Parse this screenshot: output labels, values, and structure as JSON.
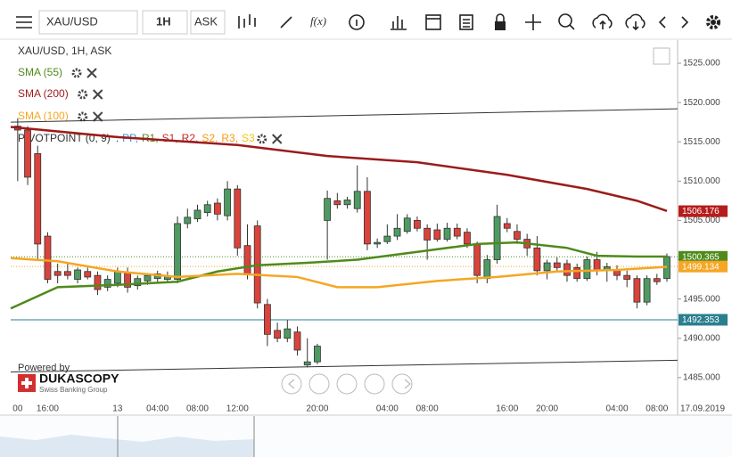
{
  "toolbar": {
    "symbol": "XAU/USD",
    "period": "1H",
    "side": "ASK",
    "function_button": "f(x)"
  },
  "branding": {
    "powered_by": "Powered by",
    "name": "DUKASCOPY",
    "tagline": "Swiss Banking Group"
  },
  "chart_data": {
    "type": "candlestick",
    "title": "XAU/USD, 1H, ASK",
    "categories": [
      "00",
      null,
      null,
      "16:00",
      null,
      null,
      null,
      null,
      null,
      null,
      "13",
      null,
      null,
      null,
      "04:00",
      null,
      null,
      null,
      "08:00",
      null,
      null,
      null,
      "12:00",
      null,
      null,
      null,
      null,
      null,
      null,
      null,
      "20:00",
      null,
      null,
      null,
      null,
      null,
      null,
      "04:00",
      null,
      null,
      null,
      "08:00",
      null,
      null,
      null,
      null,
      null,
      null,
      null,
      "16:00",
      null,
      null,
      null,
      "20:00",
      null,
      null,
      null,
      null,
      null,
      null,
      "04:00",
      null,
      null,
      null,
      "08:00",
      null
    ],
    "date_label": "17.09.2019",
    "open": [
      1517,
      1516.5,
      1513.5,
      1503,
      1498.5,
      1498.5,
      1497.5,
      1498.5,
      1498,
      1496.5,
      1497,
      1498.3,
      1496.7,
      1497.3,
      1497.6,
      1497.5,
      1497.5,
      1504.6,
      1505.2,
      1506,
      1507.2,
      1505.6,
      1509,
      1501.8,
      1504.3,
      1494.3,
      1491,
      1490,
      1490.8,
      1486.6,
      1487,
      1505,
      1507.5,
      1507,
      1506.5,
      1508.7,
      1502,
      1502.3,
      1503,
      1503.6,
      1505,
      1504,
      1503.8,
      1502.6,
      1504,
      1503.5,
      1502,
      1497.6,
      1500,
      1504.6,
      1503.6,
      1502.6,
      1501.5,
      1498.6,
      1499.6,
      1499.5,
      1499,
      1497.6,
      1500,
      1498.6,
      1498.7,
      1498,
      1497.6,
      1494.6,
      1497.6,
      1497.6
    ],
    "high": [
      1518,
      1517,
      1514.5,
      1503.5,
      1499.5,
      1499.5,
      1499,
      1499,
      1498.5,
      1498,
      1499,
      1499,
      1498,
      1498.3,
      1498.6,
      1498.5,
      1505.5,
      1506.5,
      1507,
      1507.5,
      1507.8,
      1510,
      1509.5,
      1504.5,
      1505,
      1495,
      1492,
      1492.3,
      1491.5,
      1490,
      1489.3,
      1508.8,
      1508.5,
      1508,
      1512,
      1510.5,
      1502.7,
      1504.5,
      1505.8,
      1505.8,
      1505.5,
      1504.5,
      1504.6,
      1504.7,
      1504.6,
      1504,
      1502.3,
      1500.6,
      1507,
      1505.3,
      1504.5,
      1503.3,
      1503,
      1500,
      1500.3,
      1500,
      1499.5,
      1500.4,
      1501,
      1499.6,
      1499.3,
      1498.6,
      1498,
      1498,
      1498.2,
      1500.8
    ],
    "low": [
      1510,
      1509.5,
      1500,
      1497,
      1497,
      1497.5,
      1497,
      1497.5,
      1495.5,
      1496,
      1496.5,
      1495.8,
      1496.2,
      1496.8,
      1497,
      1497,
      1497,
      1504,
      1504.8,
      1505.5,
      1505,
      1505,
      1500.5,
      1497.5,
      1493.8,
      1489,
      1489.5,
      1489.5,
      1487.8,
      1486.3,
      1486.7,
      1500,
      1506.5,
      1506.5,
      1506,
      1501.2,
      1501.5,
      1502,
      1502.5,
      1503.3,
      1503.6,
      1500,
      1502.3,
      1502.3,
      1502.6,
      1501.5,
      1497,
      1497,
      1499.5,
      1503.5,
      1502,
      1500.5,
      1498,
      1497.5,
      1498.5,
      1497.2,
      1497.2,
      1497.3,
      1498,
      1497.2,
      1497.4,
      1496.5,
      1493.8,
      1494.2,
      1496.8,
      1497.2
    ],
    "close": [
      1516.5,
      1510.5,
      1502,
      1497.5,
      1498,
      1498,
      1498.7,
      1497.8,
      1496.2,
      1497.5,
      1498.5,
      1496.5,
      1497.6,
      1498,
      1498.2,
      1497.9,
      1504.6,
      1505.4,
      1506.3,
      1507,
      1505.8,
      1509,
      1501.5,
      1498.2,
      1494.5,
      1490.5,
      1490,
      1491.2,
      1488.5,
      1487,
      1489,
      1507.8,
      1507,
      1507.6,
      1508.7,
      1502,
      1502.2,
      1503,
      1504,
      1505.3,
      1504,
      1502.5,
      1502.6,
      1504,
      1503,
      1502,
      1498,
      1500,
      1505.5,
      1504,
      1502.6,
      1501.5,
      1498.6,
      1499.6,
      1499,
      1498,
      1497.6,
      1500,
      1498.6,
      1499.1,
      1498,
      1497.5,
      1494.6,
      1497.6,
      1497.2,
      1500.4
    ],
    "up_color": "#4f9a63",
    "down_color": "#d9433b",
    "moving_averages": [
      {
        "name": "SMA (55)",
        "color": "#4f8a1b",
        "x": [
          -0.7,
          4,
          10,
          16,
          20,
          24,
          29,
          34,
          40,
          46,
          50,
          55,
          58,
          62,
          65
        ],
        "values": [
          1493.8,
          1496.5,
          1496.8,
          1497.2,
          1498.5,
          1499.3,
          1499.6,
          1500,
          1501,
          1502,
          1502.2,
          1501.5,
          1500.5,
          1500.4,
          1500.4
        ]
      },
      {
        "name": "SMA (200)",
        "color": "#9b1b1b",
        "x": [
          -0.7,
          10,
          22,
          31,
          40,
          49,
          57,
          62,
          65
        ],
        "values": [
          1516.9,
          1515.6,
          1514.6,
          1513.2,
          1512.4,
          1510.8,
          1509,
          1507.5,
          1506.2
        ]
      },
      {
        "name": "SMA (100)",
        "color": "#f5a623",
        "x": [
          -0.7,
          4,
          10,
          16,
          22,
          28,
          32,
          36,
          42,
          48,
          54,
          60,
          65
        ],
        "values": [
          1500.2,
          1499.8,
          1498.5,
          1497.8,
          1498.2,
          1497.8,
          1496.5,
          1496.5,
          1497.3,
          1497.8,
          1498.5,
          1498.7,
          1499.1
        ]
      }
    ],
    "pivot": {
      "name": "PIVOTPOINT (0, 9)",
      "prefix": ":",
      "parts": [
        {
          "text": "PP,",
          "color": "#3b8fd9"
        },
        {
          "text": "R1,",
          "color": "#4f8a1b"
        },
        {
          "text": "S1,",
          "color": "#c62828"
        },
        {
          "text": "R2,",
          "color": "#c62828"
        },
        {
          "text": "S2,",
          "color": "#f39c12"
        },
        {
          "text": "R3,",
          "color": "#f39c12"
        },
        {
          "text": "S3",
          "color": "#f1c40f"
        }
      ]
    },
    "trendlines": [
      {
        "start": [
          -0.7,
          1517.5
        ],
        "end": [
          66.07,
          1519.2
        ]
      },
      {
        "start": [
          -0.7,
          1485.7
        ],
        "end": [
          66.07,
          1487.2
        ]
      }
    ],
    "price_tags": [
      {
        "value": 1506.176,
        "color": "#b71c1c"
      },
      {
        "value": 1500.365,
        "color": "#4f8a1b",
        "line": "dotted"
      },
      {
        "value": 1499.134,
        "color": "#f5a623",
        "line": "dotted"
      },
      {
        "value": 1492.353,
        "color": "#2a7f8f",
        "line": "solid"
      }
    ],
    "xlim": [
      -0.7,
      66.07
    ],
    "ylim": [
      1482.6,
      1527.95
    ],
    "yticks": [
      {
        "value": 1485,
        "label": "1485.000"
      },
      {
        "value": 1490,
        "label": "1490.000"
      },
      {
        "value": 1495,
        "label": "1495.000"
      },
      {
        "value": 1500,
        "label": "1500.000"
      },
      {
        "value": 1505,
        "label": "1505.000"
      },
      {
        "value": 1510,
        "label": "1510.000"
      },
      {
        "value": 1515,
        "label": "1515.000"
      },
      {
        "value": 1520,
        "label": "1520.000"
      },
      {
        "value": 1525,
        "label": "1525.000"
      }
    ]
  }
}
